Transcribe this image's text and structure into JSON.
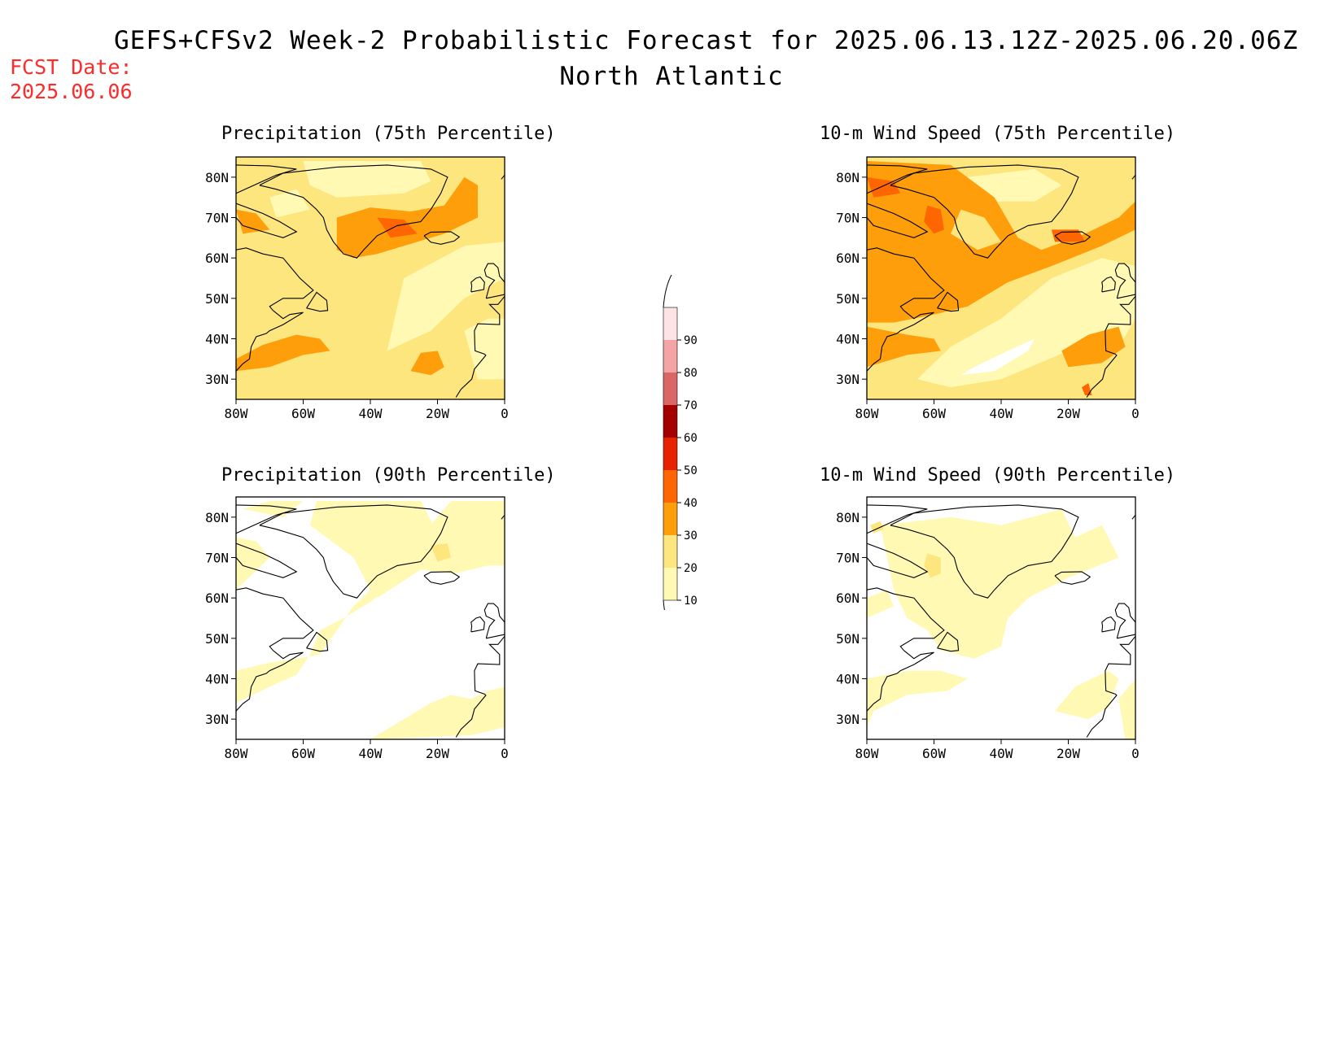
{
  "header": {
    "title": "GEFS+CFSv2 Week-2 Probabilistic Forecast for 2025.06.13.12Z-2025.06.20.06Z",
    "region": "North Atlantic",
    "fcst_label": "FCST Date:",
    "fcst_date": "2025.06.06"
  },
  "panels": [
    {
      "title": "Precipitation (75th Percentile)",
      "variable": "precipitation",
      "percentile": 75
    },
    {
      "title": "10-m Wind Speed (75th Percentile)",
      "variable": "wind",
      "percentile": 75
    },
    {
      "title": "Precipitation (90th Percentile)",
      "variable": "precipitation",
      "percentile": 90
    },
    {
      "title": "10-m Wind Speed (90th Percentile)",
      "variable": "wind",
      "percentile": 90
    }
  ],
  "axes": {
    "lat_labels": [
      "80N",
      "70N",
      "60N",
      "50N",
      "40N",
      "30N"
    ],
    "lon_labels": [
      "80W",
      "60W",
      "40W",
      "20W",
      "0"
    ],
    "lon_range": [
      -80,
      0
    ],
    "lat_range": [
      25,
      85
    ]
  },
  "colorbar": {
    "levels": [
      "10",
      "20",
      "30",
      "40",
      "50",
      "60",
      "70",
      "80",
      "90"
    ],
    "colors": [
      "#fff9b4",
      "#fee67f",
      "#fe9e0b",
      "#fe6602",
      "#e62200",
      "#a30000",
      "#db6666",
      "#f4a4a4",
      "#fde3e3"
    ]
  }
}
